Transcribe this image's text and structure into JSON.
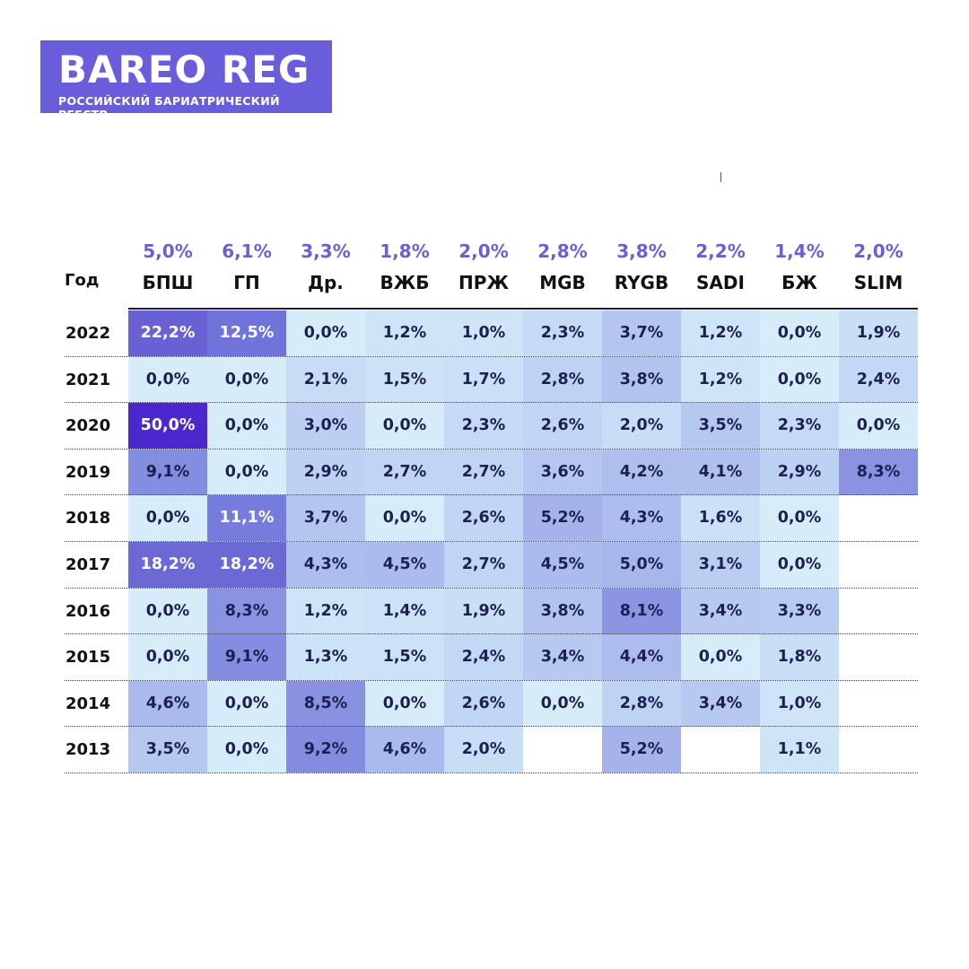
{
  "logo": {
    "main": "BAREO REG",
    "sub": "РОССИЙСКИЙ БАРИАТРИЧЕСКИЙ РЕЕСТР"
  },
  "chart_data": {
    "type": "heatmap",
    "row_header": "Год",
    "columns": [
      {
        "name": "БПШ",
        "total": "5,0%"
      },
      {
        "name": "ГП",
        "total": "6,1%"
      },
      {
        "name": "Др.",
        "total": "3,3%"
      },
      {
        "name": "ВЖБ",
        "total": "1,8%"
      },
      {
        "name": "ПРЖ",
        "total": "2,0%"
      },
      {
        "name": "MGB",
        "total": "2,8%"
      },
      {
        "name": "RYGB",
        "total": "3,8%"
      },
      {
        "name": "SADI",
        "total": "2,2%"
      },
      {
        "name": "БЖ",
        "total": "1,4%"
      },
      {
        "name": "SLIM",
        "total": "2,0%"
      }
    ],
    "rows": [
      {
        "year": "2022",
        "values": [
          "22,2%",
          "12,5%",
          "0,0%",
          "1,2%",
          "1,0%",
          "2,3%",
          "3,7%",
          "1,2%",
          "0,0%",
          "1,9%"
        ]
      },
      {
        "year": "2021",
        "values": [
          "0,0%",
          "0,0%",
          "2,1%",
          "1,5%",
          "1,7%",
          "2,8%",
          "3,8%",
          "1,2%",
          "0,0%",
          "2,4%"
        ]
      },
      {
        "year": "2020",
        "values": [
          "50,0%",
          "0,0%",
          "3,0%",
          "0,0%",
          "2,3%",
          "2,6%",
          "2,0%",
          "3,5%",
          "2,3%",
          "0,0%"
        ]
      },
      {
        "year": "2019",
        "values": [
          "9,1%",
          "0,0%",
          "2,9%",
          "2,7%",
          "2,7%",
          "3,6%",
          "4,2%",
          "4,1%",
          "2,9%",
          "8,3%"
        ]
      },
      {
        "year": "2018",
        "values": [
          "0,0%",
          "11,1%",
          "3,7%",
          "0,0%",
          "2,6%",
          "5,2%",
          "4,3%",
          "1,6%",
          "0,0%",
          ""
        ]
      },
      {
        "year": "2017",
        "values": [
          "18,2%",
          "18,2%",
          "4,3%",
          "4,5%",
          "2,7%",
          "4,5%",
          "5,0%",
          "3,1%",
          "0,0%",
          ""
        ]
      },
      {
        "year": "2016",
        "values": [
          "0,0%",
          "8,3%",
          "1,2%",
          "1,4%",
          "1,9%",
          "3,8%",
          "8,1%",
          "3,4%",
          "3,3%",
          ""
        ]
      },
      {
        "year": "2015",
        "values": [
          "0,0%",
          "9,1%",
          "1,3%",
          "1,5%",
          "2,4%",
          "3,4%",
          "4,4%",
          "0,0%",
          "1,8%",
          ""
        ]
      },
      {
        "year": "2014",
        "values": [
          "4,6%",
          "0,0%",
          "8,5%",
          "0,0%",
          "2,6%",
          "0,0%",
          "2,8%",
          "3,4%",
          "1,0%",
          ""
        ]
      },
      {
        "year": "2013",
        "values": [
          "3,5%",
          "0,0%",
          "9,2%",
          "4,6%",
          "2,0%",
          "",
          "5,2%",
          "",
          "1,1%",
          ""
        ]
      }
    ]
  }
}
